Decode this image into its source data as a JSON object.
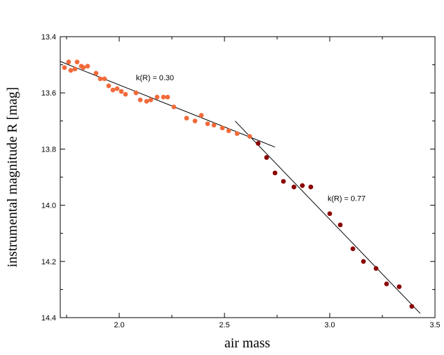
{
  "chart_data": {
    "type": "scatter",
    "xlabel": "air mass",
    "ylabel": "instrumental magnitude R [mag]",
    "xlim": [
      1.72,
      3.5
    ],
    "ylim": [
      13.4,
      14.4
    ],
    "y_inverted": true,
    "x_ticks": [
      2.0,
      2.5,
      3.0,
      3.5
    ],
    "x_tick_labels": [
      "2.0",
      "2.5",
      "3.0",
      "3.5"
    ],
    "y_ticks": [
      13.4,
      13.6,
      13.8,
      14.0,
      14.2,
      14.4
    ],
    "y_tick_labels": [
      "13.4",
      "13.6",
      "13.8",
      "14.0",
      "14.2",
      "14.4"
    ],
    "grid": false,
    "series": [
      {
        "color": "#f26a3a",
        "points": [
          [
            1.74,
            13.51
          ],
          [
            1.76,
            13.49
          ],
          [
            1.77,
            13.52
          ],
          [
            1.79,
            13.515
          ],
          [
            1.8,
            13.49
          ],
          [
            1.82,
            13.505
          ],
          [
            1.83,
            13.51
          ],
          [
            1.85,
            13.505
          ],
          [
            1.89,
            13.53
          ],
          [
            1.91,
            13.55
          ],
          [
            1.93,
            13.55
          ],
          [
            1.95,
            13.575
          ],
          [
            1.97,
            13.59
          ],
          [
            1.99,
            13.585
          ],
          [
            2.01,
            13.595
          ],
          [
            2.03,
            13.605
          ],
          [
            2.08,
            13.6
          ],
          [
            2.1,
            13.625
          ],
          [
            2.13,
            13.63
          ],
          [
            2.15,
            13.625
          ],
          [
            2.18,
            13.615
          ],
          [
            2.21,
            13.615
          ],
          [
            2.23,
            13.615
          ],
          [
            2.26,
            13.65
          ],
          [
            2.32,
            13.69
          ],
          [
            2.36,
            13.7
          ],
          [
            2.39,
            13.68
          ],
          [
            2.42,
            13.71
          ],
          [
            2.45,
            13.715
          ],
          [
            2.49,
            13.725
          ],
          [
            2.52,
            13.735
          ],
          [
            2.56,
            13.745
          ],
          [
            2.62,
            13.755
          ]
        ]
      },
      {
        "color": "#8b0000",
        "points": [
          [
            2.66,
            13.78
          ],
          [
            2.7,
            13.83
          ],
          [
            2.74,
            13.885
          ],
          [
            2.78,
            13.915
          ],
          [
            2.83,
            13.935
          ],
          [
            2.87,
            13.93
          ],
          [
            2.91,
            13.935
          ],
          [
            3.0,
            14.03
          ],
          [
            3.05,
            14.07
          ],
          [
            3.11,
            14.155
          ],
          [
            3.16,
            14.2
          ],
          [
            3.22,
            14.225
          ],
          [
            3.27,
            14.28
          ],
          [
            3.33,
            14.29
          ],
          [
            3.39,
            14.36
          ]
        ]
      }
    ],
    "fit_lines": [
      {
        "x1": 1.72,
        "y1": 13.488,
        "x2": 2.74,
        "y2": 13.793
      },
      {
        "x1": 2.55,
        "y1": 13.7,
        "x2": 3.43,
        "y2": 14.385
      }
    ],
    "annotations": [
      {
        "text": "k(R) = 0.30",
        "x": 2.08,
        "y": 13.555
      },
      {
        "text": "k(R) = 0.77",
        "x": 2.99,
        "y": 13.985
      }
    ]
  }
}
